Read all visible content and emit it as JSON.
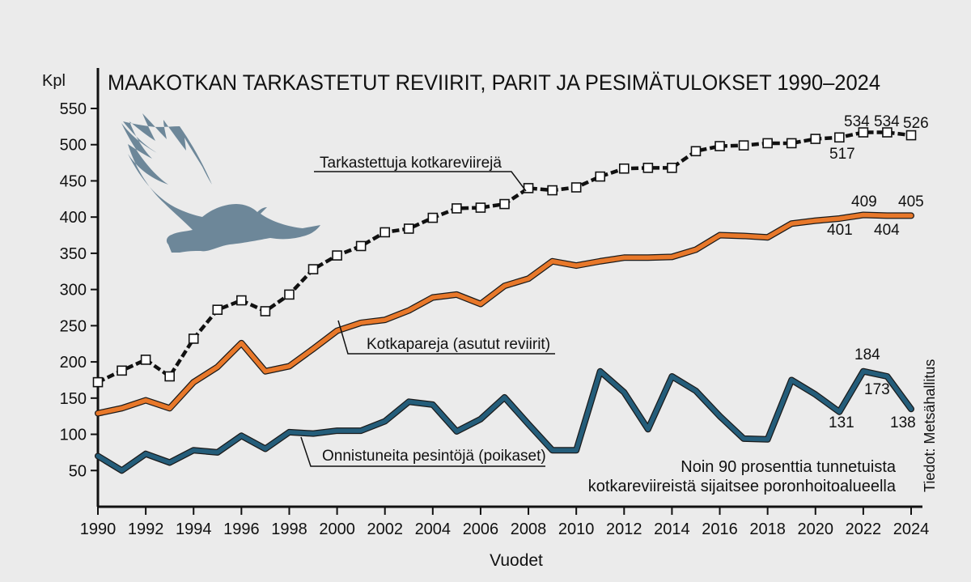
{
  "chart_data": {
    "type": "line",
    "title": "MAAKOTKAN TARKASTETUT REVIIRIT, PARIT JA PESIMÄTULOKSET 1990–2024",
    "ylabel": "Kpl",
    "xlabel": "Vuodet",
    "ylim": [
      0,
      560
    ],
    "yticks": [
      50,
      100,
      150,
      200,
      250,
      300,
      350,
      400,
      450,
      500,
      550
    ],
    "xlim": [
      1990,
      2024
    ],
    "xticks": [
      1990,
      1992,
      1994,
      1996,
      1998,
      2000,
      2002,
      2004,
      2006,
      2008,
      2010,
      2012,
      2014,
      2016,
      2018,
      2020,
      2022,
      2024
    ],
    "grid": false,
    "x": [
      1990,
      1991,
      1992,
      1993,
      1994,
      1995,
      1996,
      1997,
      1998,
      1999,
      2000,
      2001,
      2002,
      2003,
      2004,
      2005,
      2006,
      2007,
      2008,
      2009,
      2010,
      2011,
      2012,
      2013,
      2014,
      2015,
      2016,
      2017,
      2018,
      2019,
      2020,
      2021,
      2022,
      2023,
      2024
    ],
    "series": [
      {
        "name": "Tarkastettuja kotkareviirejä",
        "color": "#111111",
        "marker": "square",
        "values": [
          172,
          188,
          203,
          180,
          232,
          272,
          285,
          270,
          293,
          328,
          347,
          360,
          379,
          384,
          399,
          412,
          413,
          418,
          440,
          437,
          441,
          456,
          467,
          468,
          468,
          491,
          498,
          499,
          502,
          502,
          508,
          510,
          517,
          517,
          513
        ]
      },
      {
        "name": "Kotkapareja (asutut reviirit)",
        "color": "#e8782a",
        "marker": "none",
        "values": [
          129,
          136,
          147,
          136,
          172,
          193,
          226,
          187,
          194,
          218,
          243,
          254,
          258,
          271,
          289,
          293,
          280,
          305,
          315,
          339,
          333,
          339,
          344,
          344,
          345,
          355,
          375,
          374,
          372,
          391,
          395,
          398,
          403,
          402,
          402
        ]
      },
      {
        "name": "Onnistuneita pesintöjä (poikaset)",
        "color": "#245d7a",
        "marker": "none",
        "values": [
          70,
          50,
          73,
          61,
          78,
          75,
          98,
          80,
          103,
          101,
          105,
          105,
          118,
          145,
          141,
          104,
          121,
          151,
          114,
          78,
          78,
          187,
          158,
          107,
          180,
          160,
          125,
          94,
          93,
          175,
          155,
          131,
          187,
          180,
          135
        ]
      }
    ],
    "annotations": {
      "reviirit_labels": [
        "534",
        "534",
        "526",
        "517"
      ],
      "parit_labels": [
        "409",
        "405",
        "401",
        "404"
      ],
      "pesinnat_labels": [
        "184",
        "173",
        "131",
        "138"
      ],
      "note_line1": "Noin 90 prosenttia tunnetuista",
      "note_line2": "kotkareviireistä sijaitsee poronhoitoalueella",
      "source": "Tiedot: Metsähallitus"
    },
    "decoration": "eagle-silhouette"
  }
}
